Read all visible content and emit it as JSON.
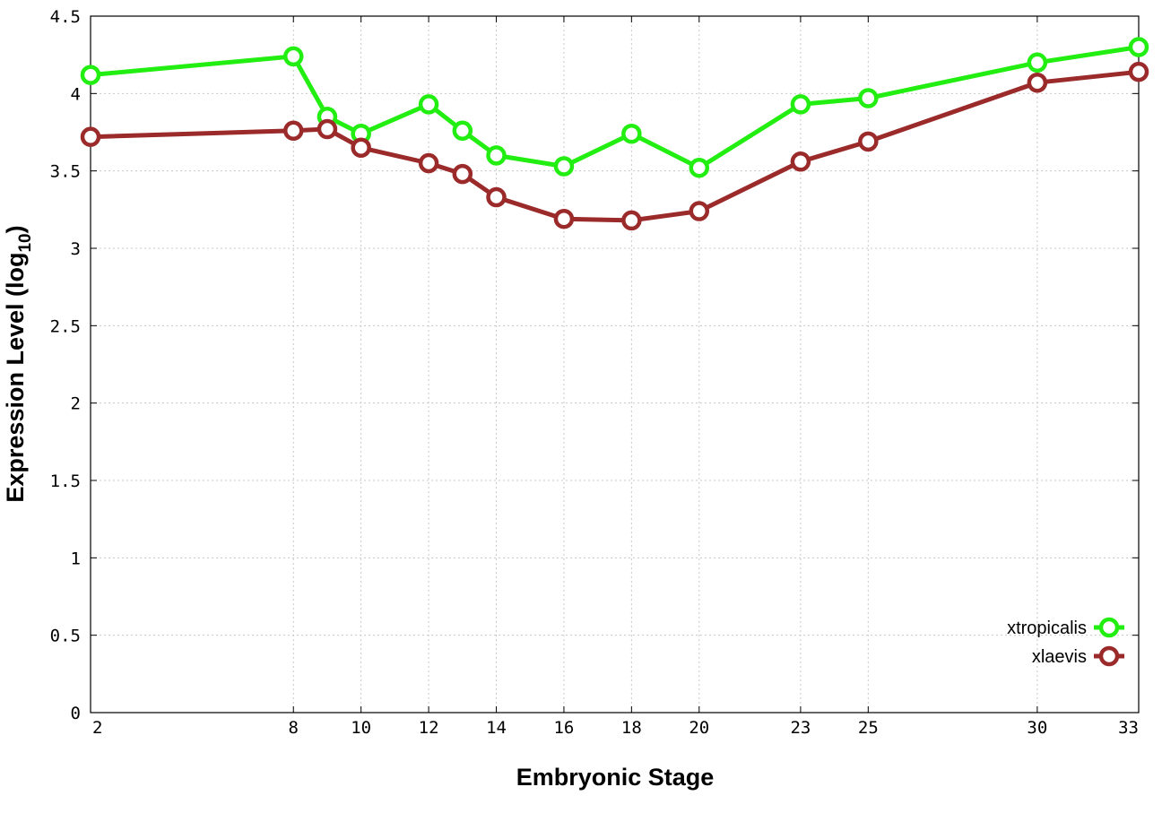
{
  "chart_data": {
    "type": "line",
    "xlabel": "Embryonic Stage",
    "ylabel_main": "Expression Level (log",
    "ylabel_sub": "10",
    "ylabel_close": ")",
    "xlim": [
      2,
      33
    ],
    "ylim": [
      0,
      4.5
    ],
    "x_ticks": [
      2,
      8,
      10,
      12,
      14,
      16,
      18,
      20,
      23,
      25,
      30,
      33
    ],
    "x_tick_labels": [
      "2",
      "8",
      "10",
      "12",
      "14",
      "16",
      "18",
      "20",
      "23",
      "25",
      "30",
      "33"
    ],
    "y_ticks": [
      0,
      0.5,
      1,
      1.5,
      2,
      2.5,
      3,
      3.5,
      4,
      4.5
    ],
    "y_tick_labels": [
      "0",
      "0.5",
      "1",
      "1.5",
      "2",
      "2.5",
      "3",
      "3.5",
      "4",
      "4.5"
    ],
    "grid": true,
    "legend_position": "bottom-right",
    "x": [
      2,
      8,
      9,
      10,
      12,
      13,
      14,
      16,
      18,
      20,
      23,
      25,
      30,
      33
    ],
    "series": [
      {
        "name": "xtropicalis",
        "color": "#22ee11",
        "values": [
          4.12,
          4.24,
          3.85,
          3.74,
          3.93,
          3.76,
          3.6,
          3.53,
          3.74,
          3.52,
          3.93,
          3.97,
          4.2,
          4.3
        ]
      },
      {
        "name": "xlaevis",
        "color": "#9b2a2a",
        "values": [
          3.72,
          3.76,
          3.77,
          3.65,
          3.55,
          3.48,
          3.33,
          3.19,
          3.18,
          3.24,
          3.56,
          3.69,
          4.07,
          4.14
        ]
      }
    ]
  }
}
